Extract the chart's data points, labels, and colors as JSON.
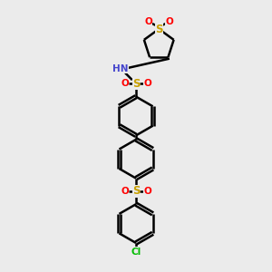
{
  "bg_color": "#ebebeb",
  "line_color": "#000000",
  "bond_width": 1.8,
  "figsize": [
    3.0,
    3.0
  ],
  "dpi": 100,
  "colors": {
    "S": "#c8a000",
    "O": "#ff0000",
    "N": "#4444cc",
    "Cl": "#00bb00",
    "C": "#000000"
  },
  "xlim": [
    0,
    10
  ],
  "ylim": [
    0,
    10
  ]
}
